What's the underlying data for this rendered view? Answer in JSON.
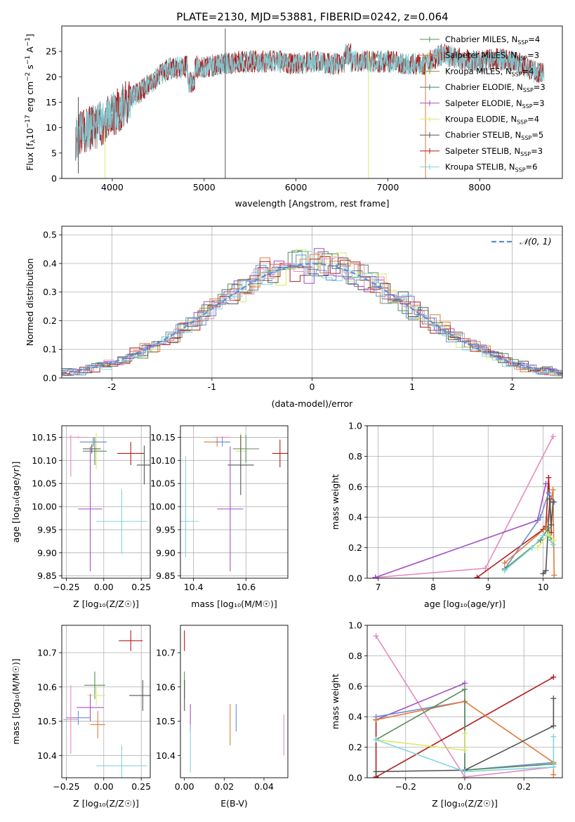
{
  "figure_title": "PLATE=2130, MJD=53881, FIBERID=0242, z=0.064",
  "colors": {
    "chab_miles": "#5b8c5a",
    "salp_miles": "#e07b39",
    "krou_miles": "#9a8c2a",
    "chab_elodie": "#4a7c6a",
    "salp_elodie": "#a34fc2",
    "krou_elodie": "#d9ea6a",
    "chab_stelib": "#555555",
    "salp_stelib": "#b31b1b",
    "krou_stelib": "#7fd6de",
    "pink": "#e58bbd",
    "blue": "#6a8fd4",
    "gauss": "#5a8fd6"
  },
  "chart_data": [
    {
      "id": "spectrum",
      "type": "line",
      "xlabel": "wavelength [Angstrom, rest frame]",
      "ylabel": "Flux [f",
      "ylabel_parts": [
        "Flux [f",
        "λ",
        "10",
        "−17",
        " erg cm",
        "−2",
        " s",
        "−1",
        " A",
        "−1",
        "]"
      ],
      "xlim": [
        3450,
        8900
      ],
      "ylim": [
        0,
        30
      ],
      "xticks": [
        4000,
        5000,
        6000,
        7000,
        8000
      ],
      "yticks": [
        0,
        5,
        10,
        15,
        20,
        25
      ],
      "continuum": {
        "x": [
          3600,
          3700,
          3800,
          3900,
          4000,
          4100,
          4200,
          4300,
          4400,
          4500,
          4600,
          4800,
          5000,
          5200,
          5400,
          5600,
          5800,
          6000,
          6200,
          6400,
          6600,
          6800,
          7000,
          7200,
          7400,
          7600,
          7800,
          8000,
          8200,
          8400,
          8600,
          8800
        ],
        "y": [
          8,
          9.5,
          10,
          11,
          12.5,
          14,
          16,
          17,
          18.5,
          20,
          21.5,
          22,
          22,
          22.5,
          23,
          23,
          23,
          22.5,
          23,
          22.5,
          23,
          23,
          23,
          22.5,
          22.5,
          24.5,
          23.5,
          23,
          23.5,
          23,
          21,
          20
        ]
      },
      "spikes": [
        {
          "x": 3630,
          "ymin": 1,
          "ymax": 16
        },
        {
          "x": 3920,
          "ymin": 0,
          "ymax": 10
        },
        {
          "x": 5230,
          "ymin": 0,
          "ymax": 29.5
        },
        {
          "x": 6790,
          "ymin": 0,
          "ymax": 25
        },
        {
          "x": 7410,
          "ymin": 0,
          "ymax": 23
        }
      ],
      "legend_position": "upper right",
      "series": [
        {
          "name": "Chabrier MILES, N",
          "sub": "SSP",
          "suffix": "=4",
          "color_key": "chab_miles"
        },
        {
          "name": "Salpeter MILES, N",
          "sub": "SSP",
          "suffix": "=3",
          "color_key": "salp_miles"
        },
        {
          "name": "Kroupa MILES, N",
          "sub": "SSP",
          "suffix": "=4",
          "color_key": "krou_miles"
        },
        {
          "name": "Chabrier ELODIE, N",
          "sub": "SSP",
          "suffix": "=3",
          "color_key": "chab_elodie"
        },
        {
          "name": "Salpeter ELODIE, N",
          "sub": "SSP",
          "suffix": "=3",
          "color_key": "salp_elodie"
        },
        {
          "name": "Kroupa ELODIE, N",
          "sub": "SSP",
          "suffix": "=4",
          "color_key": "krou_elodie"
        },
        {
          "name": "Chabrier STELIB, N",
          "sub": "SSP",
          "suffix": "=5",
          "color_key": "chab_stelib"
        },
        {
          "name": "Salpeter STELIB, N",
          "sub": "SSP",
          "suffix": "=3",
          "color_key": "salp_stelib"
        },
        {
          "name": "Kroupa STELIB, N",
          "sub": "SSP",
          "suffix": "=6",
          "color_key": "krou_stelib"
        }
      ]
    },
    {
      "id": "residuals",
      "type": "histogram",
      "xlabel": "(data-model)/error",
      "ylabel": "Normed distribution",
      "xlim": [
        -2.5,
        2.5
      ],
      "ylim": [
        0,
        0.53
      ],
      "xticks": [
        -2,
        -1,
        0,
        1,
        2
      ],
      "yticks": [
        0.0,
        0.1,
        0.2,
        0.3,
        0.4,
        0.5
      ],
      "grid": true,
      "bin_width": 0.1,
      "gaussian_label": "𝒩(0, 1)",
      "legend_position": "upper right",
      "histogram_colors": [
        "chab_miles",
        "salp_miles",
        "chab_elodie",
        "salp_elodie",
        "krou_elodie",
        "chab_stelib",
        "salp_stelib",
        "krou_stelib",
        "pink",
        "blue"
      ]
    },
    {
      "id": "age_vs_Z",
      "type": "errorbar",
      "xlabel": "Z [log₁₀(Z/Z☉)]",
      "ylabel": "age  [log₁₀(age/yr)]",
      "xlim": [
        -0.28,
        0.31
      ],
      "ylim": [
        9.845,
        10.175
      ],
      "xticks": [
        -0.25,
        0.0,
        0.25
      ],
      "xtick_labels": [
        "−0.25",
        "0.00",
        "0.25"
      ],
      "yticks": [
        9.85,
        9.9,
        9.95,
        10.0,
        10.05,
        10.1,
        10.15
      ],
      "grid": true,
      "points": [
        {
          "x": -0.17,
          "xerr": 0.07,
          "y": 10.15,
          "yerr": 0.002,
          "color_key": "pink"
        },
        {
          "x": -0.07,
          "xerr": 0.08,
          "y": 10.14,
          "yerr": 0.01,
          "color_key": "salp_miles"
        },
        {
          "x": -0.05,
          "xerr": 0.05,
          "y": 10.12,
          "yerr": 0.04,
          "color_key": "krou_elodie"
        },
        {
          "x": -0.06,
          "xerr": 0.08,
          "y": 10.12,
          "yerr": 0.03,
          "color_key": "chab_miles"
        },
        {
          "x": -0.07,
          "xerr": 0.09,
          "y": 10.14,
          "yerr": 0.01,
          "color_key": "blue"
        },
        {
          "x": -0.08,
          "xerr": 0.06,
          "y": 10.125,
          "yerr": 0.01,
          "color_key": "chab_stelib"
        },
        {
          "x": 0.18,
          "xerr": 0.09,
          "y": 10.115,
          "yerr": 0.025,
          "color_key": "salp_stelib"
        },
        {
          "x": 0.27,
          "xerr": 0.05,
          "y": 10.09,
          "yerr": 0.042,
          "color_key": "chab_stelib"
        },
        {
          "x": -0.22,
          "xerr": 0.0,
          "y": 10.11,
          "yerr": 0.045,
          "color_key": "pink"
        },
        {
          "x": -0.09,
          "xerr": 0.08,
          "y": 9.995,
          "yerr": 0.135,
          "color_key": "salp_elodie"
        },
        {
          "x": 0.12,
          "xerr": 0.17,
          "y": 9.968,
          "yerr": 0.07,
          "color_key": "krou_stelib"
        }
      ]
    },
    {
      "id": "age_vs_mass",
      "type": "errorbar",
      "xlabel": "mass [log₁₀(M/M☉)]",
      "ylabel": "",
      "xlim": [
        10.35,
        10.76
      ],
      "ylim": [
        9.845,
        10.175
      ],
      "xticks": [
        10.4,
        10.6
      ],
      "yticks": [
        9.85,
        9.9,
        9.95,
        10.0,
        10.05,
        10.1,
        10.15
      ],
      "grid": true,
      "points": [
        {
          "x": 10.51,
          "xerr": 0.03,
          "y": 10.15,
          "yerr": 0.002,
          "color_key": "pink"
        },
        {
          "x": 10.49,
          "xerr": 0.05,
          "y": 10.14,
          "yerr": 0.01,
          "color_key": "salp_miles"
        },
        {
          "x": 10.58,
          "xerr": 0.02,
          "y": 10.12,
          "yerr": 0.04,
          "color_key": "krou_elodie"
        },
        {
          "x": 10.6,
          "xerr": 0.05,
          "y": 10.125,
          "yerr": 0.03,
          "color_key": "chab_miles"
        },
        {
          "x": 10.51,
          "xerr": 0.03,
          "y": 10.14,
          "yerr": 0.01,
          "color_key": "blue"
        },
        {
          "x": 10.58,
          "xerr": 0.05,
          "y": 10.09,
          "yerr": 0.065,
          "color_key": "chab_stelib"
        },
        {
          "x": 10.73,
          "xerr": 0.03,
          "y": 10.115,
          "yerr": 0.03,
          "color_key": "salp_stelib"
        },
        {
          "x": 10.37,
          "xerr": 0.0,
          "y": 10.0,
          "yerr": 0.11,
          "color_key": "krou_stelib"
        },
        {
          "x": 10.37,
          "xerr": 0.05,
          "y": 9.968,
          "yerr": 0.07,
          "color_key": "krou_stelib"
        },
        {
          "x": 10.54,
          "xerr": 0.05,
          "y": 9.995,
          "yerr": 0.135,
          "color_key": "salp_elodie"
        }
      ]
    },
    {
      "id": "weight_vs_age",
      "type": "line",
      "xlabel": "age  [log₁₀(age/yr)]",
      "ylabel": "mass weight",
      "xlim": [
        6.8,
        10.35
      ],
      "ylim": [
        0,
        1.0
      ],
      "xticks": [
        7,
        8,
        9,
        10
      ],
      "yticks": [
        0.0,
        0.2,
        0.4,
        0.6,
        0.8,
        1.0
      ],
      "grid": true,
      "series": [
        {
          "color_key": "pink",
          "x": [
            6.95,
            8.95,
            10.18
          ],
          "y": [
            0.005,
            0.065,
            0.93
          ]
        },
        {
          "color_key": "salp_elodie",
          "x": [
            6.95,
            9.9,
            10.05
          ],
          "y": [
            0.005,
            0.38,
            0.62
          ]
        },
        {
          "color_key": "salp_stelib",
          "x": [
            8.8,
            10.0,
            10.05,
            10.1,
            10.15
          ],
          "y": [
            0.005,
            0.32,
            0.34,
            0.66,
            0.3
          ]
        },
        {
          "color_key": "blue",
          "x": [
            9.3,
            9.95,
            10.1,
            10.2
          ],
          "y": [
            0.06,
            0.4,
            0.56,
            0.5
          ]
        },
        {
          "color_key": "salp_miles",
          "x": [
            9.3,
            10.05,
            10.18,
            10.2
          ],
          "y": [
            0.1,
            0.33,
            0.58,
            0.02
          ]
        },
        {
          "color_key": "chab_stelib",
          "x": [
            10.0,
            10.05,
            10.12,
            10.15,
            10.18
          ],
          "y": [
            0.03,
            0.05,
            0.52,
            0.35,
            0.5
          ]
        },
        {
          "color_key": "chab_miles",
          "x": [
            9.3,
            9.95,
            10.1,
            10.15
          ],
          "y": [
            0.06,
            0.25,
            0.33,
            0.25
          ]
        },
        {
          "color_key": "krou_stelib",
          "x": [
            9.3,
            9.8,
            10.0,
            10.1,
            10.18
          ],
          "y": [
            0.05,
            0.2,
            0.28,
            0.28,
            0.22
          ]
        },
        {
          "color_key": "krou_elodie",
          "x": [
            9.9,
            10.1,
            10.2
          ],
          "y": [
            0.2,
            0.29,
            0.25
          ]
        }
      ]
    },
    {
      "id": "mass_vs_Z",
      "type": "errorbar",
      "xlabel": "Z [log₁₀(Z/Z☉)]",
      "ylabel": "mass [log₁₀(M/M☉)]",
      "xlim": [
        -0.28,
        0.31
      ],
      "ylim": [
        10.335,
        10.78
      ],
      "xticks": [
        -0.25,
        0.0,
        0.25
      ],
      "xtick_labels": [
        "−0.25",
        "0.00",
        "0.25"
      ],
      "yticks": [
        10.4,
        10.5,
        10.6,
        10.7
      ],
      "grid": true,
      "points": [
        {
          "x": 0.18,
          "xerr": 0.08,
          "y": 10.735,
          "yerr": 0.03,
          "color_key": "salp_stelib"
        },
        {
          "x": -0.06,
          "xerr": 0.07,
          "y": 10.605,
          "yerr": 0.04,
          "color_key": "chab_miles"
        },
        {
          "x": -0.05,
          "xerr": 0.06,
          "y": 10.575,
          "yerr": 0.03,
          "color_key": "krou_elodie"
        },
        {
          "x": 0.26,
          "xerr": 0.09,
          "y": 10.575,
          "yerr": 0.045,
          "color_key": "chab_stelib"
        },
        {
          "x": -0.09,
          "xerr": 0.09,
          "y": 10.54,
          "yerr": 0.04,
          "color_key": "salp_elodie"
        },
        {
          "x": -0.17,
          "xerr": 0.08,
          "y": 10.51,
          "yerr": 0.02,
          "color_key": "blue"
        },
        {
          "x": -0.04,
          "xerr": 0.05,
          "y": 10.49,
          "yerr": 0.04,
          "color_key": "salp_miles"
        },
        {
          "x": -0.22,
          "xerr": 0.05,
          "y": 10.505,
          "yerr": 0.1,
          "color_key": "pink"
        },
        {
          "x": 0.12,
          "xerr": 0.17,
          "y": 10.37,
          "yerr": 0.06,
          "color_key": "krou_stelib"
        }
      ]
    },
    {
      "id": "mass_vs_ebv",
      "type": "errorbar",
      "xlabel": "E(B-V)",
      "ylabel": "",
      "xlim": [
        -0.002,
        0.052
      ],
      "ylim": [
        10.335,
        10.78
      ],
      "xticks": [
        0.0,
        0.02,
        0.04
      ],
      "xtick_labels": [
        "0.00",
        "0.02",
        "0.04"
      ],
      "yticks": [
        10.4,
        10.5,
        10.6,
        10.7
      ],
      "grid": false,
      "points": [
        {
          "x": 0.0,
          "xerr": 0,
          "y": 10.735,
          "yerr": 0.03,
          "color_key": "salp_stelib"
        },
        {
          "x": 0.0,
          "xerr": 0,
          "y": 10.605,
          "yerr": 0.04,
          "color_key": "chab_miles"
        },
        {
          "x": 0.0,
          "xerr": 0,
          "y": 10.575,
          "yerr": 0.045,
          "color_key": "chab_stelib"
        },
        {
          "x": 0.003,
          "xerr": 0,
          "y": 10.51,
          "yerr": 0.04,
          "color_key": "salp_elodie"
        },
        {
          "x": 0.003,
          "xerr": 0,
          "y": 10.42,
          "yerr": 0.07,
          "color_key": "krou_stelib"
        },
        {
          "x": 0.023,
          "xerr": 0,
          "y": 10.49,
          "yerr": 0.06,
          "color_key": "salp_miles"
        },
        {
          "x": 0.026,
          "xerr": 0,
          "y": 10.51,
          "yerr": 0.04,
          "color_key": "blue"
        },
        {
          "x": 0.05,
          "xerr": 0,
          "y": 10.46,
          "yerr": 0.06,
          "color_key": "pink"
        }
      ]
    },
    {
      "id": "weight_vs_Z",
      "type": "line",
      "xlabel": "Z [log₁₀(Z/Z☉)]",
      "ylabel": "mass weight",
      "xlim": [
        -0.33,
        0.33
      ],
      "ylim": [
        0,
        1.0
      ],
      "xticks": [
        -0.2,
        0.0,
        0.2
      ],
      "xtick_labels": [
        "−0.2",
        "0.0",
        "0.2"
      ],
      "yticks": [
        0.0,
        0.2,
        0.4,
        0.6,
        0.8,
        1.0
      ],
      "grid": true,
      "series": [
        {
          "color_key": "pink",
          "x": [
            -0.3,
            0.0,
            0.3
          ],
          "y": [
            0.93,
            0.005,
            0.07
          ]
        },
        {
          "color_key": "salp_elodie",
          "x": [
            -0.3,
            0.0
          ],
          "y": [
            0.38,
            0.62
          ]
        },
        {
          "color_key": "salp_stelib",
          "x": [
            -0.3,
            -0.3,
            0.3
          ],
          "y": [
            0.38,
            0.005,
            0.66
          ]
        },
        {
          "color_key": "blue",
          "x": [
            -0.3,
            0.0,
            0.0,
            0.3
          ],
          "y": [
            0.4,
            0.5,
            0.05,
            0.1
          ]
        },
        {
          "color_key": "salp_miles",
          "x": [
            -0.3,
            0.0,
            0.3,
            0.3
          ],
          "y": [
            0.38,
            0.5,
            0.1,
            0.02
          ]
        },
        {
          "color_key": "chab_miles",
          "x": [
            -0.3,
            0.0,
            0.0,
            0.3
          ],
          "y": [
            0.25,
            0.58,
            0.05,
            0.09
          ]
        },
        {
          "color_key": "chab_stelib",
          "x": [
            -0.3,
            0.0,
            0.3,
            0.3
          ],
          "y": [
            0.04,
            0.05,
            0.34,
            0.52
          ]
        },
        {
          "color_key": "krou_elodie",
          "x": [
            -0.3,
            0.0,
            0.0
          ],
          "y": [
            0.25,
            0.18,
            0.29
          ]
        },
        {
          "color_key": "krou_stelib",
          "x": [
            -0.3,
            0.0,
            0.3,
            0.3
          ],
          "y": [
            0.25,
            0.04,
            0.07,
            0.27
          ]
        }
      ]
    }
  ]
}
